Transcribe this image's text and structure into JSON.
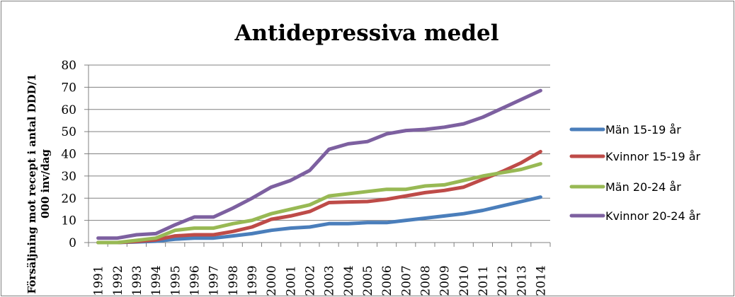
{
  "chart_data": {
    "type": "line",
    "title": "Antidepressiva medel",
    "xlabel": "",
    "ylabel": "Försäljning mot recept i antal DDD/1000 inv/dag",
    "ylabel_lines": [
      "Försäljning mot recept i antal DDD/1",
      "000 inv/dag"
    ],
    "ylim": [
      0,
      80
    ],
    "yticks": [
      0,
      10,
      20,
      30,
      40,
      50,
      60,
      70,
      80
    ],
    "grid": true,
    "legend_position": "right",
    "categories": [
      "1991",
      "1992",
      "1993",
      "1994",
      "1995",
      "1996",
      "1997",
      "1998",
      "1999",
      "2000",
      "2001",
      "2002",
      "2003",
      "2004",
      "2005",
      "2006",
      "2007",
      "2008",
      "2009",
      "2010",
      "2011",
      "2012",
      "2013",
      "2014"
    ],
    "series": [
      {
        "name": "Män 15-19 år",
        "color": "#4a7ebb",
        "values": [
          0,
          0,
          0.3,
          0.6,
          1.5,
          2,
          2,
          3,
          4,
          5.5,
          6.5,
          7,
          8.5,
          8.5,
          9,
          9,
          10,
          11,
          12,
          13,
          14.5,
          16.5,
          18.5,
          20.5
        ]
      },
      {
        "name": "Kvinnor 15-19 år",
        "color": "#be4b48",
        "values": [
          0,
          0,
          0.5,
          1.2,
          3,
          3.5,
          3.5,
          5,
          7,
          10.5,
          12,
          14,
          18,
          18.3,
          18.5,
          19.5,
          21,
          22.5,
          23.5,
          25,
          28.5,
          32,
          36,
          41
        ]
      },
      {
        "name": "Män 20-24 år",
        "color": "#98b954",
        "values": [
          0,
          0,
          1,
          2,
          5.5,
          6.5,
          6.5,
          8.5,
          10,
          13,
          15,
          17,
          21,
          22,
          23,
          24,
          24,
          25.5,
          26,
          28,
          30,
          31.5,
          33,
          35.5
        ]
      },
      {
        "name": "Kvinnor 20-24 år",
        "color": "#7d60a0",
        "values": [
          2,
          2,
          3.5,
          4,
          8,
          11.5,
          11.5,
          15.5,
          20,
          25,
          28,
          32.5,
          42,
          44.5,
          45.5,
          49,
          50.5,
          51,
          52,
          53.5,
          56.5,
          60.5,
          64.5,
          68.5
        ]
      }
    ]
  }
}
